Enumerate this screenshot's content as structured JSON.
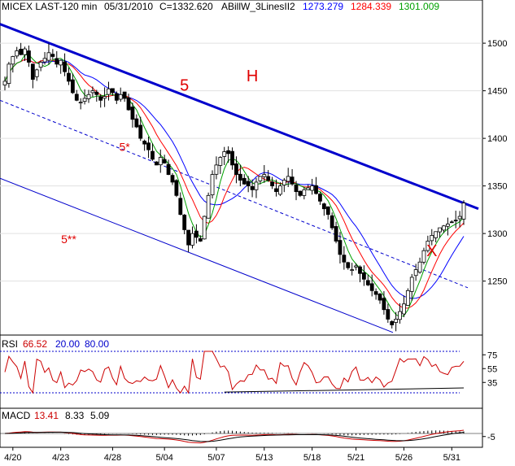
{
  "chart_data": {
    "type": "candlestick",
    "header": {
      "symbol": "MICEX LAST-120 min",
      "date": "05/31/2010",
      "close": "C=1332.620",
      "indicator": "ABillW_3LinesII2",
      "ma1": "1273.279",
      "ma2": "1284.339",
      "ma3": "1301.009"
    },
    "colors": {
      "ma1": "#0000ff",
      "ma2": "#ff0000",
      "ma3": "#00a000",
      "trend": "#0000cc",
      "annot": "#e00000"
    },
    "price_axis": {
      "ylim": [
        1195,
        1530
      ],
      "ticks": [
        1250,
        1300,
        1350,
        1400,
        1450,
        1500
      ]
    },
    "date_labels": [
      "4/20",
      "4/23",
      "4/28",
      "5/04",
      "5/07",
      "5/13",
      "5/18",
      "5/21",
      "5/26",
      "5/31"
    ],
    "date_label_pos": [
      2,
      14,
      27,
      40,
      53,
      65,
      77,
      88,
      100,
      112
    ],
    "bars": 116,
    "close": [
      1460,
      1478,
      1486,
      1492,
      1488,
      1494,
      1480,
      1462,
      1472,
      1480,
      1484,
      1490,
      1486,
      1478,
      1482,
      1470,
      1460,
      1448,
      1440,
      1438,
      1442,
      1446,
      1450,
      1446,
      1440,
      1444,
      1452,
      1448,
      1440,
      1446,
      1442,
      1430,
      1420,
      1412,
      1400,
      1394,
      1388,
      1378,
      1372,
      1380,
      1374,
      1362,
      1354,
      1340,
      1320,
      1304,
      1288,
      1300,
      1296,
      1292,
      1318,
      1340,
      1362,
      1372,
      1380,
      1386,
      1384,
      1372,
      1362,
      1356,
      1352,
      1350,
      1346,
      1354,
      1360,
      1362,
      1356,
      1350,
      1344,
      1350,
      1356,
      1360,
      1352,
      1344,
      1340,
      1346,
      1348,
      1350,
      1342,
      1334,
      1326,
      1320,
      1306,
      1292,
      1278,
      1270,
      1264,
      1262,
      1266,
      1258,
      1252,
      1246,
      1240,
      1236,
      1230,
      1220,
      1210,
      1204,
      1210,
      1218,
      1226,
      1240,
      1254,
      1262,
      1270,
      1282,
      1292,
      1298,
      1302,
      1306,
      1308,
      1310,
      1312,
      1314,
      1318,
      1332
    ],
    "high_low_note": "",
    "annotations": [
      {
        "text": "5",
        "bar": 45,
        "price": 1450
      },
      {
        "text": "H",
        "bar": 62,
        "price": 1460
      },
      {
        "text": "5*",
        "bar": 30,
        "price": 1387
      },
      {
        "text": "5**",
        "bar": 16,
        "price": 1290
      },
      {
        "text": "X",
        "bar": 107,
        "price": 1276
      }
    ],
    "rsi": {
      "label": "RSI",
      "value": "66.52",
      "lo": "20.00",
      "hi": "80.00",
      "ticks": [
        35,
        55,
        75
      ],
      "ylim": [
        0,
        100
      ]
    },
    "macd": {
      "label": "MACD",
      "v1": "13.41",
      "v2": "8.33",
      "v3": "5.09",
      "ticks": [
        -5
      ],
      "ylim": [
        -20,
        20
      ]
    }
  }
}
